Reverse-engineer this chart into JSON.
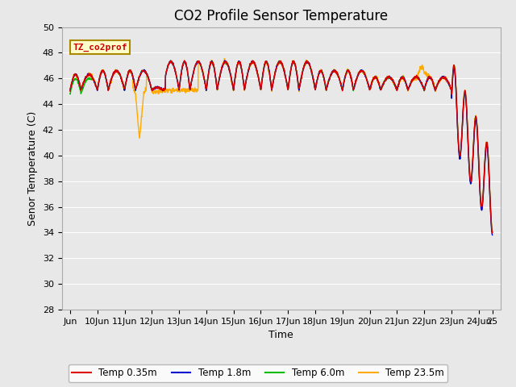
{
  "title": "CO2 Profile Sensor Temperature",
  "ylabel": "Senor Temperature (C)",
  "xlabel": "Time",
  "ylim": [
    28,
    50
  ],
  "xlim": [
    -0.3,
    15.8
  ],
  "annotation": "TZ_co2prof",
  "legend_labels": [
    "Temp 0.35m",
    "Temp 1.8m",
    "Temp 6.0m",
    "Temp 23.5m"
  ],
  "line_colors": [
    "#dd0000",
    "#0000cc",
    "#00bb00",
    "#ffaa00"
  ],
  "bg_color": "#e8e8e8",
  "xtick_positions": [
    0,
    1,
    2,
    3,
    4,
    5,
    6,
    7,
    8,
    9,
    10,
    11,
    12,
    13,
    14,
    15,
    15.5
  ],
  "xtick_labels": [
    "Jun",
    "10Jun",
    "11Jun",
    "12Jun",
    "13Jun",
    "14Jun",
    "15Jun",
    "16Jun",
    "17Jun",
    "18Jun",
    "19Jun",
    "20Jun",
    "21Jun",
    "22Jun",
    "23Jun",
    "24Jun",
    "25"
  ],
  "ytick_positions": [
    28,
    30,
    32,
    34,
    36,
    38,
    40,
    42,
    44,
    46,
    48,
    50
  ],
  "grid_color": "#ffffff",
  "title_fontsize": 12,
  "axis_fontsize": 9,
  "tick_fontsize": 8,
  "linewidth": 1.0
}
